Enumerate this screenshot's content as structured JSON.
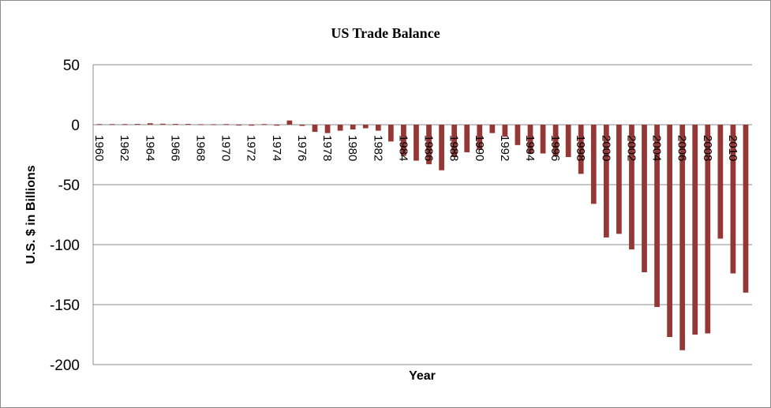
{
  "chart_data": {
    "type": "bar",
    "title": "US Trade Balance",
    "xlabel": "Year",
    "ylabel": "U.S. $ in Billions",
    "ylim": [
      -200,
      50
    ],
    "yticks": [
      50,
      0,
      -50,
      -100,
      -150,
      -200
    ],
    "grid": true,
    "bar_color": "#953735",
    "categories": [
      "1960",
      "1961",
      "1962",
      "1963",
      "1964",
      "1965",
      "1966",
      "1967",
      "1968",
      "1969",
      "1970",
      "1971",
      "1972",
      "1973",
      "1974",
      "1975",
      "1976",
      "1977",
      "1978",
      "1979",
      "1980",
      "1981",
      "1982",
      "1983",
      "1984",
      "1985",
      "1986",
      "1987",
      "1988",
      "1989",
      "1990",
      "1991",
      "1992",
      "1993",
      "1994",
      "1995",
      "1996",
      "1997",
      "1998",
      "1999",
      "2000",
      "2001",
      "2002",
      "2003",
      "2004",
      "2005",
      "2006",
      "2007",
      "2008",
      "2009",
      "2010",
      "2011"
    ],
    "tick_labels": [
      "1960",
      "1962",
      "1964",
      "1966",
      "1968",
      "1970",
      "1972",
      "1974",
      "1976",
      "1978",
      "1980",
      "1982",
      "1984",
      "1986",
      "1988",
      "1990",
      "1992",
      "1994",
      "1996",
      "1998",
      "2000",
      "2002",
      "2004",
      "2006",
      "2008",
      "2010"
    ],
    "values": [
      0.5,
      0.5,
      0.5,
      0.6,
      1.2,
      0.8,
      0.6,
      0.6,
      0.4,
      0.4,
      0.5,
      -0.5,
      -0.8,
      0.5,
      -0.8,
      3.5,
      -1,
      -6,
      -7,
      -5,
      -4,
      -3,
      -5,
      -14,
      -26,
      -30,
      -33,
      -38,
      -27,
      -23,
      -21,
      -7,
      -10,
      -17,
      -24,
      -24,
      -26,
      -27,
      -41,
      -66,
      -94,
      -91,
      -104,
      -123,
      -152,
      -177,
      -188,
      -175,
      -174,
      -95,
      -124,
      -140
    ]
  }
}
